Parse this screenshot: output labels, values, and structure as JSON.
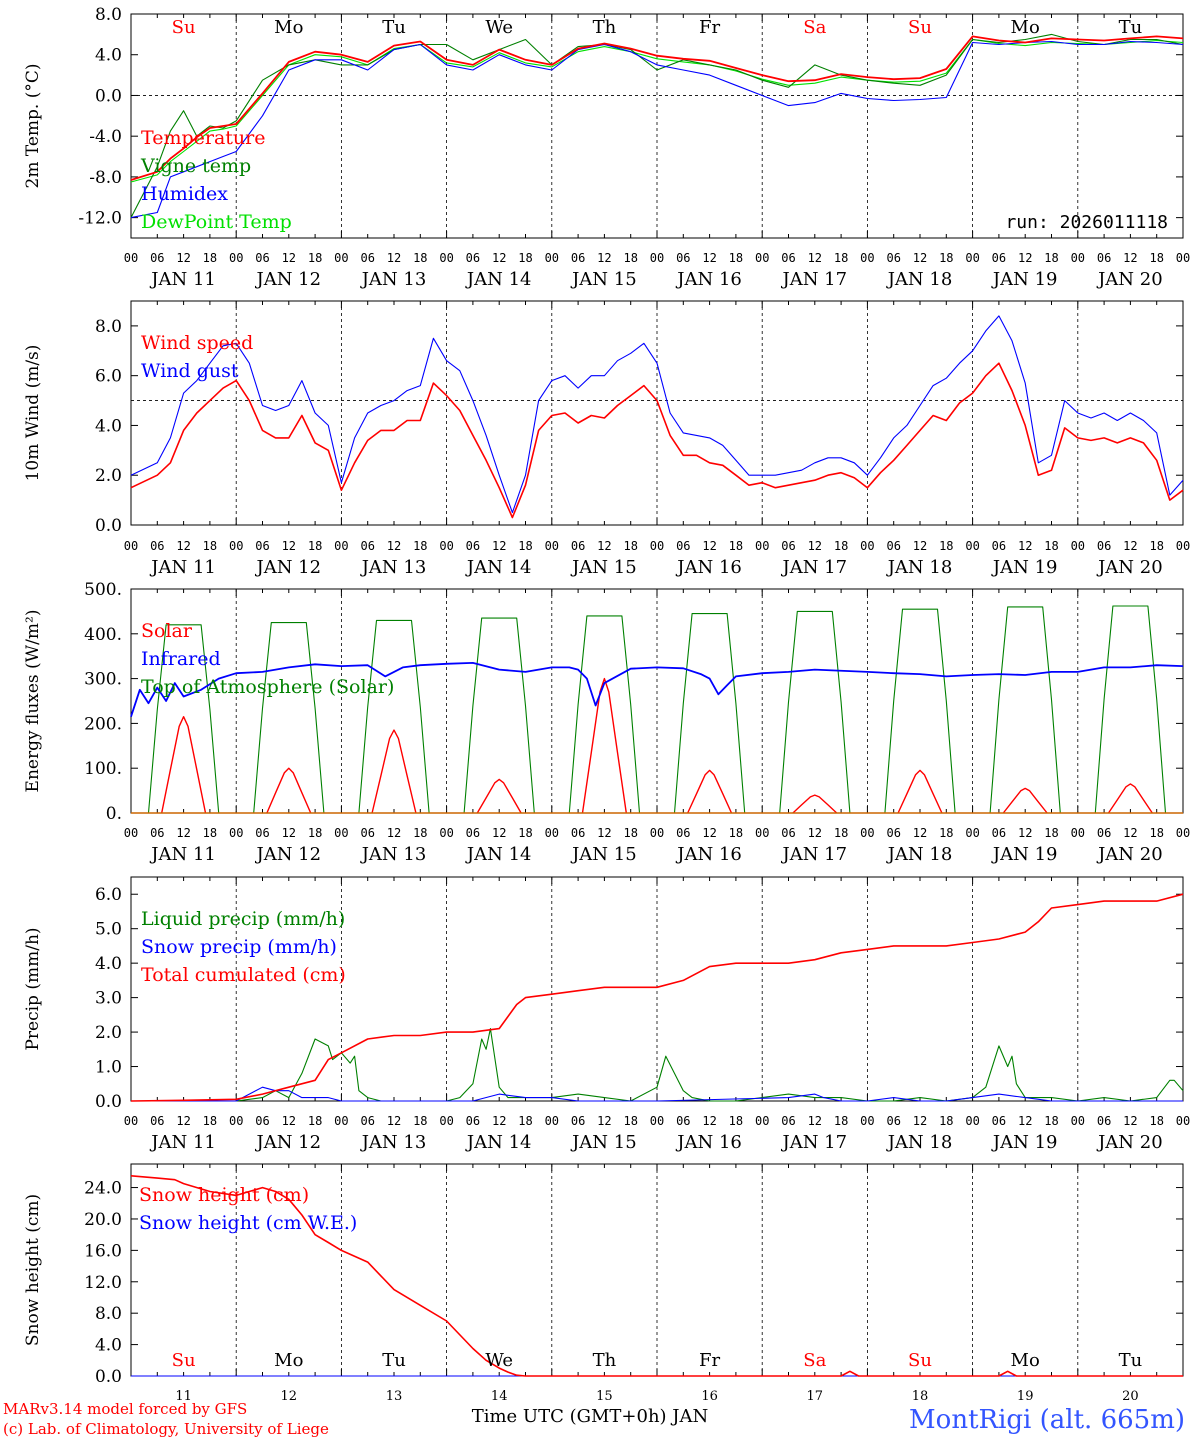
{
  "meta": {
    "run": "run: 2026011118",
    "footer_model": "MARv3.14 model forced by GFS",
    "footer_lab": "(c) Lab. of Climatology, University of Liege",
    "station": "MontRigi (alt. 665m)",
    "time_axis_title": "Time UTC (GMT+0h) JAN",
    "hour_ticks": [
      "00",
      "06",
      "12",
      "18"
    ],
    "date_labels": [
      "JAN 11",
      "JAN 12",
      "JAN 13",
      "JAN 14",
      "JAN 15",
      "JAN 16",
      "JAN 17",
      "JAN 18",
      "JAN 19",
      "JAN 20"
    ],
    "weekdays": [
      "Su",
      "Mo",
      "Tu",
      "We",
      "Th",
      "Fr",
      "Sa",
      "Su",
      "Mo",
      "Tu"
    ],
    "day_numbers": [
      "11",
      "12",
      "13",
      "14",
      "15",
      "16",
      "17",
      "18",
      "19",
      "20"
    ],
    "colors": {
      "red": "#ff0000",
      "green": "#008000",
      "blue": "#0000ff",
      "lime": "#00e000",
      "station": "#3355ff",
      "footer": "#ff0000",
      "weekend": "#ff0000"
    }
  },
  "chart_data": [
    {
      "type": "line",
      "title": "2m Temp.",
      "ylabel": "2m Temp. (°C)",
      "ylim": [
        -14,
        8
      ],
      "yticks": [
        "8.0",
        "4.0",
        "0.0",
        "-4.0",
        "-8.0",
        "-12.0"
      ],
      "reference_line": 0,
      "x_unit": "hours since JAN 11 00 UTC",
      "x": [
        0,
        6,
        9,
        12,
        15,
        18,
        21,
        24,
        30,
        36,
        42,
        48,
        54,
        60,
        66,
        72,
        78,
        84,
        90,
        96,
        102,
        108,
        114,
        120,
        126,
        132,
        138,
        144,
        150,
        156,
        162,
        168,
        174,
        180,
        186,
        192,
        198,
        204,
        210,
        216,
        222,
        228,
        234,
        240
      ],
      "series": [
        {
          "name": "Temperature",
          "color": "#ff0000",
          "values": [
            -8.3,
            -7.5,
            -6.2,
            -5.2,
            -4.1,
            -3.2,
            -3.0,
            -2.8,
            0.2,
            3.3,
            4.3,
            4.0,
            3.3,
            4.9,
            5.3,
            3.5,
            3.0,
            4.5,
            3.5,
            3.0,
            4.6,
            5.1,
            4.6,
            3.9,
            3.6,
            3.4,
            2.7,
            2.0,
            1.4,
            1.5,
            2.1,
            1.8,
            1.6,
            1.7,
            2.6,
            5.8,
            5.4,
            5.2,
            5.6,
            5.5,
            5.4,
            5.6,
            5.8,
            5.6
          ]
        },
        {
          "name": "Vigne temp",
          "color": "#008000",
          "values": [
            -12.0,
            -7.0,
            -3.5,
            -1.5,
            -4.0,
            -3.0,
            -3.2,
            -2.5,
            1.5,
            3.0,
            3.5,
            3.0,
            3.0,
            4.5,
            5.0,
            5.0,
            3.5,
            4.5,
            5.5,
            3.0,
            4.8,
            5.0,
            4.5,
            2.5,
            3.5,
            3.0,
            2.5,
            1.5,
            0.8,
            3.0,
            2.0,
            1.5,
            1.2,
            1.0,
            2.0,
            5.5,
            5.2,
            5.5,
            6.0,
            5.3,
            5.0,
            5.5,
            5.5,
            5.0
          ]
        },
        {
          "name": "Humidex",
          "color": "#0000ff",
          "values": [
            -12.0,
            -11.5,
            -8.0,
            -7.5,
            -7.0,
            -6.5,
            -6.0,
            -5.5,
            -2.0,
            2.5,
            3.5,
            3.5,
            2.5,
            4.5,
            5.0,
            3.0,
            2.5,
            4.0,
            3.0,
            2.5,
            4.5,
            5.0,
            4.3,
            3.0,
            2.5,
            2.0,
            1.0,
            0.0,
            -1.0,
            -0.7,
            0.2,
            -0.3,
            -0.5,
            -0.4,
            -0.2,
            5.2,
            5.0,
            5.2,
            5.3,
            5.0,
            5.0,
            5.3,
            5.2,
            5.0
          ]
        },
        {
          "name": "DewPoint Temp",
          "color": "#00e000",
          "values": [
            -8.5,
            -7.8,
            -6.5,
            -5.5,
            -4.5,
            -3.5,
            -3.3,
            -3.0,
            0.0,
            3.0,
            4.0,
            3.8,
            3.0,
            4.6,
            5.0,
            3.2,
            2.8,
            4.2,
            3.2,
            2.8,
            4.3,
            4.8,
            4.3,
            3.6,
            3.3,
            3.0,
            2.4,
            1.6,
            1.0,
            1.2,
            1.8,
            1.5,
            1.3,
            1.4,
            2.2,
            5.5,
            5.1,
            4.9,
            5.2,
            5.1,
            5.0,
            5.2,
            5.4,
            5.2
          ]
        }
      ]
    },
    {
      "type": "line",
      "title": "10m Wind",
      "ylabel": "10m Wind (m/s)",
      "ylim": [
        0,
        9
      ],
      "yticks": [
        "8.0",
        "6.0",
        "4.0",
        "2.0",
        "0.0"
      ],
      "reference_line": 5,
      "x": [
        0,
        6,
        9,
        12,
        15,
        18,
        21,
        24,
        27,
        30,
        33,
        36,
        39,
        42,
        45,
        48,
        51,
        54,
        57,
        60,
        63,
        66,
        69,
        72,
        75,
        78,
        81,
        84,
        87,
        90,
        93,
        96,
        99,
        102,
        105,
        108,
        111,
        114,
        117,
        120,
        123,
        126,
        129,
        132,
        135,
        138,
        141,
        144,
        147,
        150,
        153,
        156,
        159,
        162,
        165,
        168,
        171,
        174,
        177,
        180,
        183,
        186,
        189,
        192,
        195,
        198,
        201,
        204,
        207,
        210,
        213,
        216,
        219,
        222,
        225,
        228,
        231,
        234,
        237,
        240
      ],
      "series": [
        {
          "name": "Wind speed",
          "color": "#ff0000",
          "values": [
            1.5,
            2.0,
            2.5,
            3.8,
            4.5,
            5.0,
            5.5,
            5.8,
            5.0,
            3.8,
            3.5,
            3.5,
            4.4,
            3.3,
            3.0,
            1.4,
            2.5,
            3.4,
            3.8,
            3.8,
            4.2,
            4.2,
            5.7,
            5.2,
            4.6,
            3.6,
            2.6,
            1.5,
            0.3,
            1.6,
            3.8,
            4.4,
            4.5,
            4.1,
            4.4,
            4.3,
            4.8,
            5.2,
            5.6,
            5.0,
            3.6,
            2.8,
            2.8,
            2.5,
            2.4,
            2.0,
            1.6,
            1.7,
            1.5,
            1.6,
            1.7,
            1.8,
            2.0,
            2.1,
            1.9,
            1.5,
            2.1,
            2.6,
            3.2,
            3.8,
            4.4,
            4.2,
            4.9,
            5.3,
            6.0,
            6.5,
            5.4,
            4.0,
            2.0,
            2.2,
            3.9,
            3.5,
            3.4,
            3.5,
            3.3,
            3.5,
            3.3,
            2.6,
            1.0,
            1.4
          ]
        },
        {
          "name": "Wind gust",
          "color": "#0000ff",
          "values": [
            2.0,
            2.5,
            3.5,
            5.3,
            5.8,
            6.5,
            7.2,
            7.3,
            6.5,
            4.8,
            4.6,
            4.8,
            5.8,
            4.5,
            4.0,
            1.7,
            3.5,
            4.5,
            4.8,
            5.0,
            5.4,
            5.6,
            7.5,
            6.6,
            6.2,
            5.0,
            3.6,
            2.0,
            0.5,
            2.0,
            5.0,
            5.8,
            6.0,
            5.5,
            6.0,
            6.0,
            6.6,
            6.9,
            7.3,
            6.5,
            4.5,
            3.7,
            3.6,
            3.5,
            3.2,
            2.6,
            2.0,
            2.0,
            2.0,
            2.1,
            2.2,
            2.5,
            2.7,
            2.7,
            2.5,
            2.0,
            2.7,
            3.5,
            4.0,
            4.8,
            5.6,
            5.9,
            6.5,
            7.0,
            7.8,
            8.4,
            7.4,
            5.7,
            2.5,
            2.8,
            5.0,
            4.5,
            4.3,
            4.5,
            4.2,
            4.5,
            4.2,
            3.7,
            1.2,
            1.8
          ]
        }
      ]
    },
    {
      "type": "line",
      "title": "Energy fluxes",
      "ylabel": "Energy fluxes (W/m²)",
      "ylim": [
        0,
        500
      ],
      "yticks": [
        "500.",
        "400.",
        "300.",
        "200.",
        "100.",
        "0."
      ],
      "infrared": {
        "name": "Infrared",
        "color": "#0000ff",
        "x": [
          0,
          2,
          4,
          6,
          8,
          10,
          12,
          16,
          20,
          24,
          30,
          36,
          42,
          48,
          54,
          58,
          60,
          62,
          66,
          72,
          78,
          84,
          90,
          96,
          100,
          102,
          104,
          106,
          108,
          114,
          120,
          126,
          130,
          132,
          134,
          136,
          138,
          144,
          150,
          156,
          168,
          174,
          180,
          186,
          192,
          198,
          204,
          210,
          216,
          222,
          228,
          234,
          240
        ],
        "values": [
          215,
          275,
          245,
          280,
          250,
          290,
          260,
          275,
          300,
          312,
          315,
          325,
          332,
          328,
          330,
          305,
          315,
          325,
          330,
          333,
          335,
          320,
          315,
          325,
          325,
          320,
          300,
          240,
          290,
          322,
          325,
          323,
          310,
          300,
          265,
          285,
          305,
          312,
          315,
          320,
          315,
          312,
          310,
          305,
          308,
          310,
          308,
          315,
          315,
          325,
          325,
          330,
          328
        ]
      },
      "solar_peaks": {
        "name": "Solar",
        "color": "#ff0000",
        "center_hours": [
          12,
          36,
          60,
          84,
          108,
          132,
          156,
          180,
          204,
          228
        ],
        "values": [
          215,
          100,
          185,
          75,
          300,
          95,
          40,
          95,
          55,
          65
        ]
      },
      "toa_peaks": {
        "name": "Top of Atmosphere (Solar)",
        "color": "#008000",
        "center_hours": [
          12,
          36,
          60,
          84,
          108,
          132,
          156,
          180,
          204,
          228
        ],
        "values": [
          420,
          425,
          430,
          435,
          440,
          445,
          450,
          455,
          460,
          462
        ]
      }
    },
    {
      "type": "line",
      "title": "Precip",
      "ylabel": "Precip (mm/h)",
      "ylim": [
        0,
        6.5
      ],
      "yticks": [
        "6.0",
        "5.0",
        "4.0",
        "3.0",
        "2.0",
        "1.0",
        "0.0"
      ],
      "series": [
        {
          "name": "Liquid precip (mm/h)",
          "color": "#008000",
          "x": [
            0,
            24,
            30,
            33,
            36,
            39,
            42,
            45,
            46,
            48,
            50,
            51,
            52,
            54,
            57,
            60,
            66,
            72,
            75,
            78,
            80,
            81,
            82,
            84,
            86,
            90,
            96,
            102,
            108,
            114,
            120,
            122,
            124,
            126,
            128,
            132,
            138,
            150,
            156,
            162,
            168,
            174,
            180,
            186,
            192,
            195,
            198,
            200,
            201,
            202,
            204,
            210,
            216,
            222,
            228,
            234,
            237,
            238,
            240
          ],
          "values": [
            0,
            0,
            0.1,
            0.3,
            0.1,
            0.8,
            1.8,
            1.6,
            1.2,
            1.4,
            1.1,
            1.3,
            0.3,
            0.1,
            0.0,
            0.0,
            0.0,
            0.0,
            0.1,
            0.5,
            1.8,
            1.5,
            2.1,
            0.4,
            0.1,
            0.1,
            0.1,
            0.2,
            0.1,
            0.0,
            0.4,
            1.3,
            0.8,
            0.3,
            0.1,
            0.0,
            0.0,
            0.2,
            0.1,
            0.1,
            0.0,
            0.0,
            0.1,
            0.0,
            0.1,
            0.4,
            1.6,
            1.0,
            1.3,
            0.5,
            0.1,
            0.1,
            0.0,
            0.1,
            0.0,
            0.1,
            0.6,
            0.6,
            0.3
          ]
        },
        {
          "name": "Snow precip (mm/h)",
          "color": "#0000ff",
          "x": [
            0,
            24,
            30,
            33,
            36,
            39,
            42,
            45,
            48,
            54,
            60,
            66,
            72,
            78,
            84,
            90,
            96,
            102,
            108,
            114,
            120,
            150,
            156,
            158,
            162,
            168,
            174,
            180,
            186,
            192,
            198,
            204,
            210,
            216,
            222,
            228,
            234,
            240
          ],
          "values": [
            0,
            0,
            0.4,
            0.3,
            0.3,
            0.1,
            0.1,
            0.1,
            0,
            0,
            0,
            0,
            0,
            0,
            0.2,
            0.1,
            0.1,
            0,
            0,
            0,
            0,
            0.1,
            0.2,
            0.1,
            0,
            0,
            0.1,
            0,
            0,
            0.1,
            0.2,
            0.1,
            0,
            0,
            0,
            0,
            0,
            0
          ]
        },
        {
          "name": "Total cumulated (cm)",
          "color": "#ff0000",
          "x": [
            0,
            12,
            24,
            30,
            36,
            42,
            45,
            48,
            54,
            60,
            66,
            72,
            78,
            84,
            88,
            90,
            96,
            102,
            108,
            114,
            120,
            126,
            132,
            138,
            144,
            150,
            156,
            162,
            168,
            174,
            180,
            186,
            192,
            198,
            204,
            207,
            210,
            216,
            222,
            228,
            234,
            240
          ],
          "values": [
            0,
            0.02,
            0.05,
            0.2,
            0.4,
            0.6,
            1.2,
            1.4,
            1.8,
            1.9,
            1.9,
            2.0,
            2.0,
            2.1,
            2.8,
            3.0,
            3.1,
            3.2,
            3.3,
            3.3,
            3.3,
            3.5,
            3.9,
            4.0,
            4.0,
            4.0,
            4.1,
            4.3,
            4.4,
            4.5,
            4.5,
            4.5,
            4.6,
            4.7,
            4.9,
            5.2,
            5.6,
            5.7,
            5.8,
            5.8,
            5.8,
            6.0
          ]
        }
      ]
    },
    {
      "type": "line",
      "title": "Snow height",
      "ylabel": "Snow height (cm)",
      "ylim": [
        0,
        27
      ],
      "yticks": [
        "24.0",
        "20.0",
        "16.0",
        "12.0",
        "8.0",
        "4.0",
        "0.0"
      ],
      "series": [
        {
          "name": "Snow height (cm)",
          "color": "#ff0000",
          "x": [
            0,
            6,
            10,
            12,
            18,
            24,
            30,
            33,
            36,
            39,
            42,
            45,
            48,
            54,
            60,
            66,
            72,
            78,
            81,
            84,
            86,
            88,
            90,
            96,
            120,
            150,
            162,
            164,
            166,
            186,
            198,
            200,
            202,
            240
          ],
          "values": [
            25.5,
            25.2,
            25.0,
            24.5,
            23.5,
            23.0,
            24.0,
            23.5,
            22.5,
            20.5,
            18.0,
            17.0,
            16.0,
            14.5,
            11.0,
            9.0,
            7.0,
            3.5,
            2.0,
            1.0,
            0.5,
            0.1,
            0,
            0,
            0,
            0,
            0,
            0.6,
            0,
            0,
            0,
            0.6,
            0,
            0
          ]
        },
        {
          "name": "Snow height (cm W.E.)",
          "color": "#0000ff",
          "x": [
            0,
            240
          ],
          "values": [
            0,
            0
          ]
        }
      ]
    }
  ]
}
